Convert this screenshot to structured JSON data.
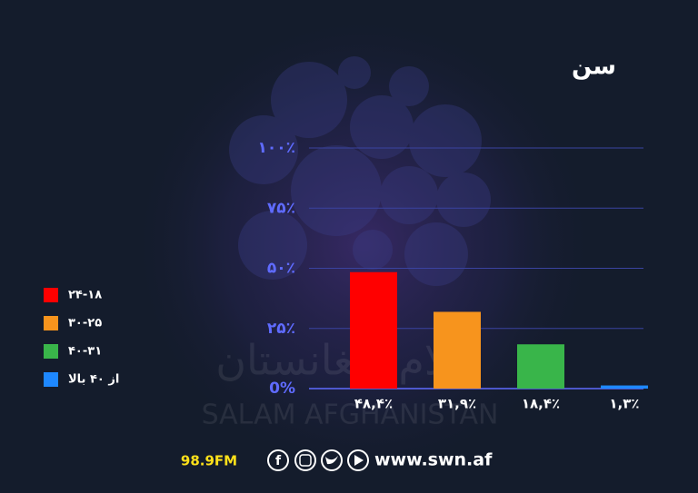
{
  "chart_data": {
    "type": "bar",
    "title": "سن",
    "categories": [
      "۲۴-۱۸",
      "۳۰-۲۵",
      "۴۰-۳۱",
      "از ۴۰ بالا"
    ],
    "values": [
      48.4,
      31.9,
      18.4,
      1.3
    ],
    "value_labels": [
      "۴۸,۴٪",
      "۳۱,۹٪",
      "۱۸,۴٪",
      "۱,۳٪"
    ],
    "colors": [
      "#ff0000",
      "#f7941d",
      "#39b54a",
      "#1e88ff"
    ],
    "ylim": [
      0,
      100
    ],
    "yticks": [
      {
        "value": 0,
        "label": "0%"
      },
      {
        "value": 25,
        "label": "۲۵٪"
      },
      {
        "value": 50,
        "label": "۵۰٪"
      },
      {
        "value": 75,
        "label": "۷۵٪"
      },
      {
        "value": 100,
        "label": "۱۰۰٪"
      }
    ],
    "grid": true,
    "legend": "left"
  },
  "watermark": {
    "persian": "سلام افغانستان",
    "latin": "SALAM AFGHANISTAN"
  },
  "footer": {
    "radio": "98.9FM",
    "website": "www.swn.af"
  }
}
